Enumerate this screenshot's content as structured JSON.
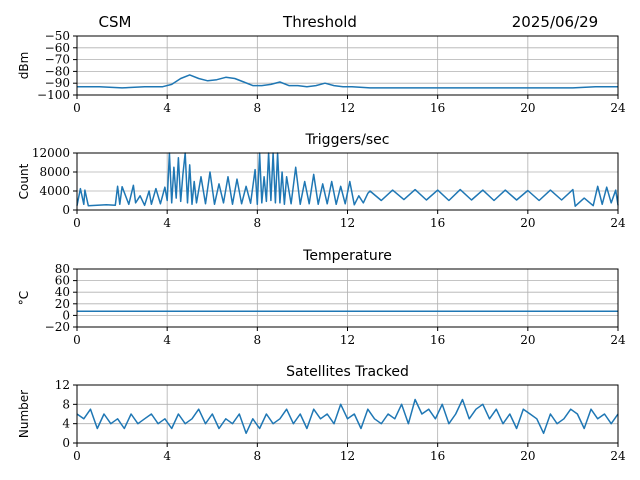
{
  "header": {
    "left": "CSM",
    "center": "Threshold",
    "right": "2025/06/29"
  },
  "colors": {
    "series": "#1f77b4",
    "grid": "#b0b0b0"
  },
  "chart_data": [
    {
      "id": "threshold",
      "type": "line",
      "title": "",
      "xlabel": "",
      "ylabel": "dBm",
      "xlim": [
        0,
        24
      ],
      "ylim": [
        -100,
        -50
      ],
      "xticks": [
        0,
        4,
        8,
        12,
        16,
        20,
        24
      ],
      "yticks": [
        -100,
        -90,
        -80,
        -70,
        -60,
        -50
      ],
      "yticklabels": [
        "−100",
        "−90",
        "−80",
        "−70",
        "−60",
        "−50"
      ],
      "grid": true,
      "x": [
        0,
        1,
        2,
        3,
        3.8,
        4.2,
        4.6,
        5.0,
        5.4,
        5.8,
        6.2,
        6.6,
        7.0,
        7.4,
        7.8,
        8.2,
        8.6,
        9.0,
        9.4,
        9.8,
        10.2,
        10.6,
        11.0,
        11.4,
        11.8,
        12.2,
        13,
        14,
        16,
        18,
        20,
        22,
        23,
        24
      ],
      "y": [
        -93,
        -93,
        -94,
        -93,
        -93,
        -91,
        -86,
        -83,
        -86,
        -88,
        -87,
        -85,
        -86,
        -89,
        -92,
        -92,
        -91,
        -89,
        -92,
        -92,
        -93,
        -92,
        -90,
        -92,
        -93,
        -93,
        -94,
        -94,
        -94,
        -94,
        -94,
        -94,
        -93,
        -93
      ]
    },
    {
      "id": "triggers",
      "type": "line",
      "title": "Triggers/sec",
      "xlabel": "",
      "ylabel": "Count",
      "xlim": [
        0,
        24
      ],
      "ylim": [
        0,
        12000
      ],
      "xticks": [
        0,
        4,
        8,
        12,
        16,
        20,
        24
      ],
      "yticks": [
        0,
        4000,
        8000,
        12000
      ],
      "yticklabels": [
        "0",
        "4000",
        "8000",
        "12000"
      ],
      "grid": true,
      "x": [
        0,
        0.15,
        0.3,
        0.35,
        0.5,
        0.9,
        1.3,
        1.7,
        1.8,
        1.9,
        2.0,
        2.3,
        2.5,
        2.6,
        2.8,
        3.0,
        3.2,
        3.3,
        3.5,
        3.7,
        3.9,
        4.0,
        4.1,
        4.2,
        4.3,
        4.4,
        4.5,
        4.6,
        4.7,
        4.8,
        4.9,
        5.0,
        5.1,
        5.2,
        5.3,
        5.5,
        5.7,
        5.9,
        6.1,
        6.3,
        6.5,
        6.7,
        6.9,
        7.1,
        7.3,
        7.5,
        7.7,
        7.9,
        8.0,
        8.1,
        8.2,
        8.3,
        8.4,
        8.5,
        8.6,
        8.7,
        8.8,
        8.9,
        9.0,
        9.1,
        9.2,
        9.3,
        9.5,
        9.7,
        9.9,
        10.1,
        10.3,
        10.5,
        10.7,
        10.9,
        11.1,
        11.3,
        11.5,
        11.7,
        11.9,
        12.1,
        12.3,
        12.5,
        12.7,
        12.9,
        13.0,
        13.5,
        14,
        14.5,
        15,
        15.5,
        16,
        16.5,
        17,
        17.5,
        18,
        18.5,
        19,
        19.5,
        20,
        20.5,
        21,
        21.5,
        22,
        22.1,
        22.5,
        22.9,
        23.1,
        23.3,
        23.5,
        23.7,
        23.9,
        24
      ],
      "y": [
        900,
        4500,
        1200,
        4200,
        900,
        1000,
        1100,
        1000,
        5000,
        1200,
        4900,
        1200,
        5200,
        1500,
        3000,
        1000,
        4000,
        1200,
        4500,
        1300,
        4800,
        2000,
        12000,
        1500,
        9000,
        2500,
        11000,
        1800,
        7500,
        12000,
        1500,
        9500,
        1200,
        6000,
        1500,
        7000,
        1300,
        8000,
        1200,
        5500,
        1500,
        7000,
        1200,
        6500,
        1300,
        5000,
        1400,
        8500,
        1200,
        12000,
        1500,
        7000,
        1800,
        12000,
        2000,
        12000,
        1500,
        12000,
        1500,
        8000,
        1200,
        7000,
        1300,
        9000,
        1200,
        6000,
        1300,
        7500,
        1200,
        5500,
        1300,
        6000,
        1200,
        5000,
        1300,
        6000,
        1100,
        3000,
        1500,
        3500,
        4000,
        2000,
        4200,
        2200,
        4300,
        2100,
        4200,
        2000,
        4300,
        2100,
        4200,
        2000,
        4200,
        2100,
        4100,
        2000,
        4200,
        2100,
        4300,
        800,
        2500,
        900,
        5000,
        1200,
        4800,
        1500,
        4200,
        1000
      ]
    },
    {
      "id": "temperature",
      "type": "line",
      "title": "Temperature",
      "xlabel": "",
      "ylabel": "°C",
      "xlim": [
        0,
        24
      ],
      "ylim": [
        -20,
        80
      ],
      "xticks": [
        0,
        4,
        8,
        12,
        16,
        20,
        24
      ],
      "yticks": [
        -20,
        0,
        20,
        40,
        60,
        80
      ],
      "yticklabels": [
        "−20",
        "0",
        "20",
        "40",
        "60",
        "80"
      ],
      "grid": true,
      "x": [
        0,
        24
      ],
      "y": [
        7,
        7
      ]
    },
    {
      "id": "satellites",
      "type": "line",
      "title": "Satellites Tracked",
      "xlabel": "",
      "ylabel": "Number",
      "xlim": [
        0,
        24
      ],
      "ylim": [
        0,
        12
      ],
      "xticks": [
        0,
        4,
        8,
        12,
        16,
        20,
        24
      ],
      "yticks": [
        0,
        4,
        8,
        12
      ],
      "yticklabels": [
        "0",
        "4",
        "8",
        "12"
      ],
      "grid": true,
      "x": [
        0,
        0.3,
        0.6,
        0.9,
        1.2,
        1.5,
        1.8,
        2.1,
        2.4,
        2.7,
        3.0,
        3.3,
        3.6,
        3.9,
        4.2,
        4.5,
        4.8,
        5.1,
        5.4,
        5.7,
        6.0,
        6.3,
        6.6,
        6.9,
        7.2,
        7.5,
        7.8,
        8.1,
        8.4,
        8.7,
        9.0,
        9.3,
        9.6,
        9.9,
        10.2,
        10.5,
        10.8,
        11.1,
        11.4,
        11.7,
        12.0,
        12.3,
        12.6,
        12.9,
        13.2,
        13.5,
        13.8,
        14.1,
        14.4,
        14.7,
        15.0,
        15.3,
        15.6,
        15.9,
        16.2,
        16.5,
        16.8,
        17.1,
        17.4,
        17.7,
        18.0,
        18.3,
        18.6,
        18.9,
        19.2,
        19.5,
        19.8,
        20.1,
        20.4,
        20.7,
        21.0,
        21.3,
        21.6,
        21.9,
        22.2,
        22.5,
        22.8,
        23.1,
        23.4,
        23.7,
        24.0
      ],
      "y": [
        6,
        5,
        7,
        3,
        6,
        4,
        5,
        3,
        6,
        4,
        5,
        6,
        4,
        5,
        3,
        6,
        4,
        5,
        7,
        4,
        6,
        3,
        5,
        4,
        6,
        2,
        5,
        3,
        6,
        4,
        5,
        7,
        4,
        6,
        3,
        7,
        5,
        6,
        4,
        8,
        5,
        6,
        3,
        7,
        5,
        4,
        6,
        5,
        8,
        4,
        9,
        6,
        7,
        5,
        8,
        4,
        6,
        9,
        5,
        7,
        8,
        5,
        7,
        4,
        6,
        3,
        7,
        6,
        5,
        2,
        6,
        4,
        5,
        7,
        6,
        3,
        7,
        5,
        6,
        4,
        6
      ]
    }
  ]
}
